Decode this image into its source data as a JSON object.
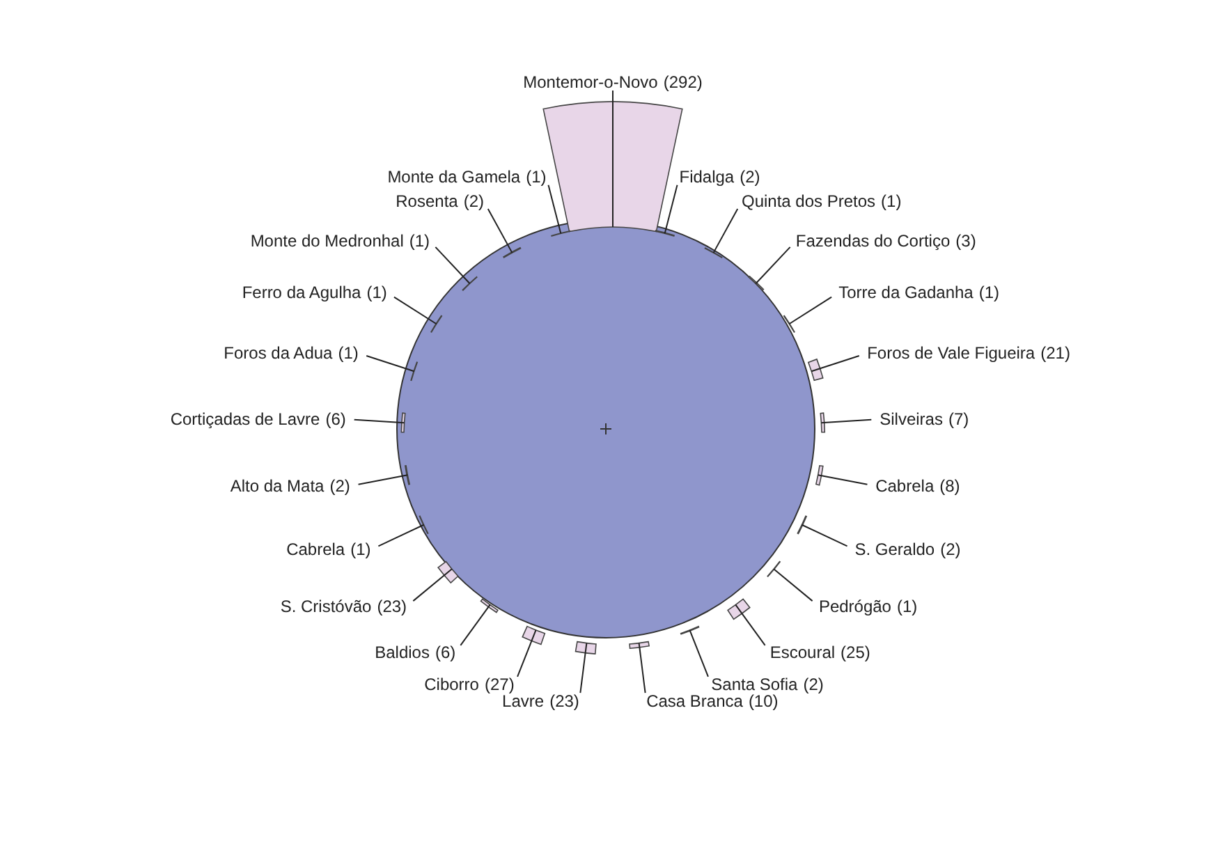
{
  "chart_data": {
    "type": "other",
    "categories": [
      "Montemor-o-Novo",
      "Fidalga",
      "Quinta dos Pretos",
      "Fazendas do Cortiço",
      "Torre da Gadanha",
      "Foros de Vale Figueira",
      "Silveiras",
      "Cabrela",
      "S. Geraldo",
      "Pedrógão",
      "Escoural",
      "Santa Sofia",
      "Casa Branca",
      "Lavre",
      "Ciborro",
      "Baldios",
      "S. Cristóvão",
      "Cabrela",
      "Alto da Mata",
      "Cortiçadas de Lavre",
      "Foros da Adua",
      "Ferro da Agulha",
      "Monte do Medronhal",
      "Rosenta",
      "Monte da Gamela"
    ],
    "values": [
      292,
      2,
      1,
      3,
      1,
      21,
      7,
      8,
      2,
      1,
      25,
      2,
      10,
      23,
      27,
      6,
      23,
      1,
      2,
      6,
      1,
      1,
      1,
      2,
      1
    ],
    "value_labels": [
      "(292)",
      "(2)",
      "(1)",
      "(3)",
      "(1)",
      "(21)",
      "(7)",
      "(8)",
      "(2)",
      "(1)",
      "(25)",
      "(2)",
      "(10)",
      "(23)",
      "(27)",
      "(6)",
      "(23)",
      "(1)",
      "(2)",
      "(6)",
      "(1)",
      "(1)",
      "(1)",
      "(2)",
      "(1)"
    ],
    "color": "#e8d6e8"
  }
}
